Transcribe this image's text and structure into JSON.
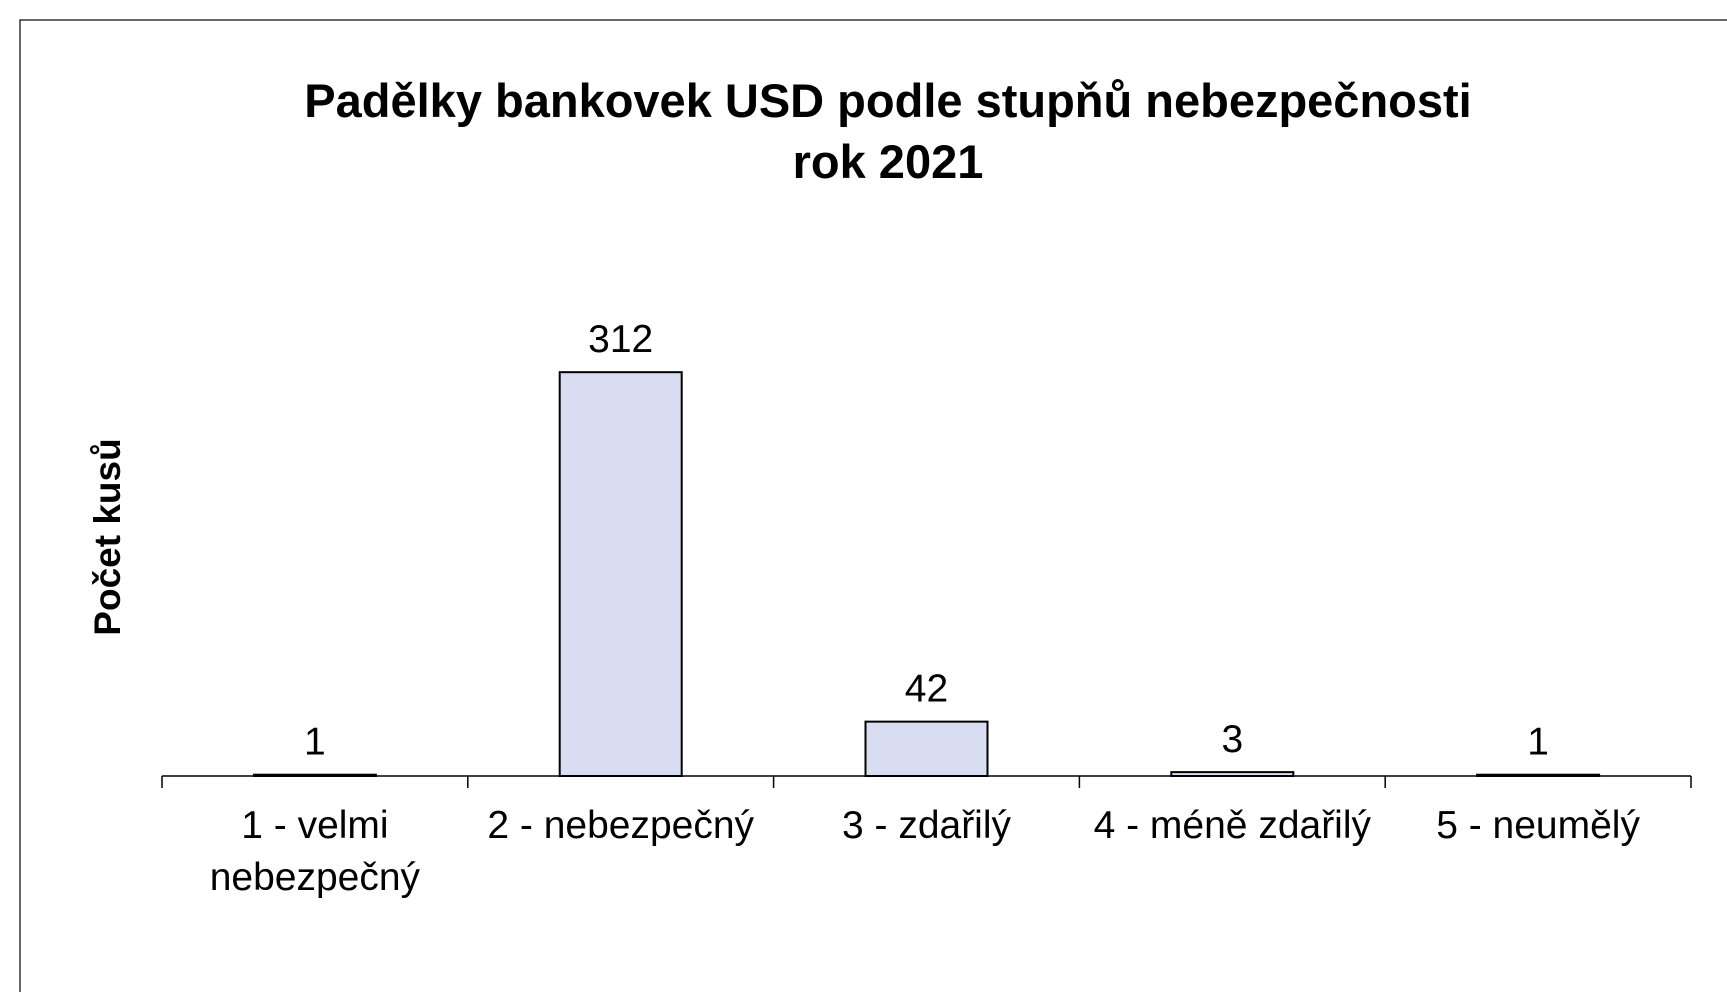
{
  "chart_data": {
    "type": "bar",
    "title": "Padělky bankovek USD podle stupňů nebezpečnosti",
    "subtitle": "rok 2021",
    "y_label": "Počet kusů",
    "categories": [
      "1 - velmi nebezpečný",
      "2 - nebezpečný",
      "3 - zdařilý",
      "4 - méně zdařilý",
      "5 - neumělý"
    ],
    "values": [
      1,
      312,
      42,
      3,
      1
    ],
    "color": "#d9ddf2",
    "ylim": [
      0,
      350
    ],
    "grid": false
  }
}
